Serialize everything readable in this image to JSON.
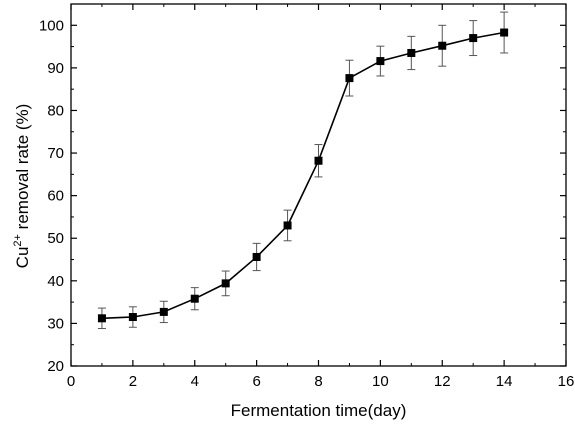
{
  "chart_data": {
    "type": "line",
    "xlabel": "Fermentation time(day)",
    "ylabel": {
      "prefix": "Cu",
      "superscript": "2+",
      "suffix": " removal rate (%)"
    },
    "xlim": [
      0,
      16
    ],
    "ylim": [
      20,
      105
    ],
    "xticks": [
      0,
      2,
      4,
      6,
      8,
      10,
      12,
      14,
      16
    ],
    "yticks": [
      20,
      30,
      40,
      50,
      60,
      70,
      80,
      90,
      100
    ],
    "grid": false,
    "marker": "square",
    "series": [
      {
        "x": [
          1,
          2,
          3,
          4,
          5,
          6,
          7,
          8,
          9,
          10,
          11,
          12,
          13,
          14
        ],
        "y": [
          31.2,
          31.5,
          32.7,
          35.8,
          39.4,
          45.6,
          53.0,
          68.2,
          87.6,
          91.6,
          93.5,
          95.2,
          97.0,
          98.3
        ],
        "error": [
          2.4,
          2.4,
          2.5,
          2.6,
          2.9,
          3.2,
          3.6,
          3.8,
          4.2,
          3.5,
          3.9,
          4.8,
          4.1,
          4.8
        ]
      }
    ]
  }
}
